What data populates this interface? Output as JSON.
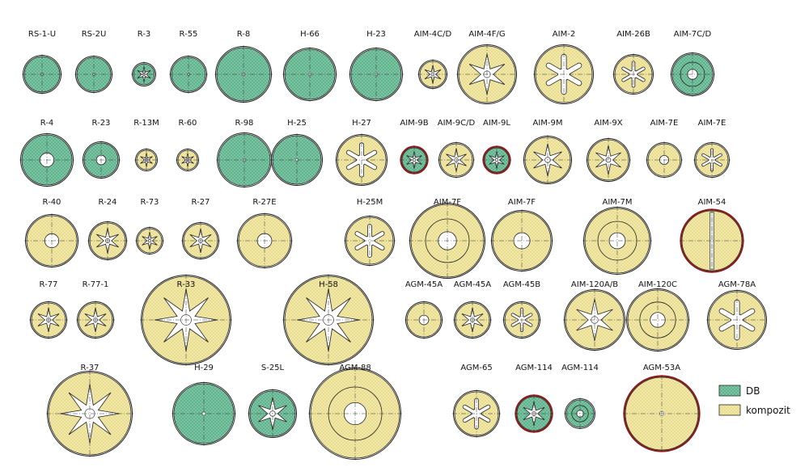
{
  "colors": {
    "db": "#79c7a3",
    "kompozit": "#f3e9a6",
    "outline": "#222222",
    "outer_red": "#8b1a1a"
  },
  "legend": [
    {
      "key": "db",
      "label": "DB"
    },
    {
      "key": "kompozit",
      "label": "kompozit"
    }
  ],
  "rows": [
    [
      {
        "label": "RS-1-U",
        "mat": "db",
        "pattern": "cross"
      },
      {
        "label": "RS-2U",
        "mat": "db",
        "pattern": "cross"
      },
      {
        "label": "R-3",
        "mat": "db",
        "pattern": "star"
      },
      {
        "label": "R-55",
        "mat": "db",
        "pattern": "cross"
      },
      {
        "label": "R-8",
        "mat": "db",
        "pattern": "cross"
      },
      {
        "label": "H-66",
        "mat": "db",
        "pattern": "cross"
      },
      {
        "label": "H-23",
        "mat": "db",
        "pattern": "cross"
      },
      {
        "label": "AIM-4C/D",
        "mat": "kompozit",
        "pattern": "star"
      },
      {
        "label": "AIM-4F/G",
        "mat": "kompozit",
        "pattern": "star"
      },
      {
        "label": "AIM-2",
        "mat": "kompozit",
        "pattern": "slots"
      },
      {
        "label": "AIM-26B",
        "mat": "kompozit",
        "pattern": "slots"
      },
      {
        "label": "AIM-7C/D",
        "mat": "db",
        "pattern": "rings"
      }
    ],
    [
      {
        "label": "R-4",
        "mat": "db",
        "pattern": "hole"
      },
      {
        "label": "R-23",
        "mat": "db",
        "pattern": "hole"
      },
      {
        "label": "R-13M",
        "mat": "kompozit",
        "pattern": "star"
      },
      {
        "label": "R-60",
        "mat": "kompozit",
        "pattern": "star"
      },
      {
        "label": "R-98",
        "mat": "db",
        "pattern": "cross"
      },
      {
        "label": "H-25",
        "mat": "db",
        "pattern": "cross"
      },
      {
        "label": "H-27",
        "mat": "kompozit",
        "pattern": "slots"
      },
      {
        "label": "AIM-9B",
        "mat": "db",
        "pattern": "star"
      },
      {
        "label": "AIM-9C/D",
        "mat": "kompozit",
        "pattern": "star"
      },
      {
        "label": "AIM-9L",
        "mat": "db",
        "pattern": "star"
      },
      {
        "label": "AIM-9M",
        "mat": "kompozit",
        "pattern": "star"
      },
      {
        "label": "AIM-9X",
        "mat": "kompozit",
        "pattern": "star"
      },
      {
        "label": "AIM-7E",
        "mat": "kompozit",
        "pattern": "hole"
      },
      {
        "label": "AIM-7E",
        "mat": "kompozit",
        "pattern": "slots"
      }
    ],
    [
      {
        "label": "R-40",
        "mat": "kompozit",
        "pattern": "hole"
      },
      {
        "label": "R-24",
        "mat": "kompozit",
        "pattern": "star"
      },
      {
        "label": "R-73",
        "mat": "kompozit",
        "pattern": "star"
      },
      {
        "label": "R-27",
        "mat": "kompozit",
        "pattern": "star"
      },
      {
        "label": "R-27E",
        "mat": "kompozit",
        "pattern": "hole"
      },
      {
        "label": "H-25M",
        "mat": "kompozit",
        "pattern": "slots"
      },
      {
        "label": "AIM-7F",
        "mat": "kompozit",
        "pattern": "rings"
      },
      {
        "label": "AIM-7F",
        "mat": "kompozit",
        "pattern": "hole"
      },
      {
        "label": "AIM-7M",
        "mat": "kompozit",
        "pattern": "rings"
      },
      {
        "label": "AIM-54",
        "mat": "kompozit",
        "pattern": "bar"
      }
    ],
    [
      {
        "label": "R-77",
        "mat": "kompozit",
        "pattern": "star"
      },
      {
        "label": "R-77-1",
        "mat": "kompozit",
        "pattern": "star"
      },
      {
        "label": "R-33",
        "mat": "kompozit",
        "pattern": "star"
      },
      {
        "label": "H-58",
        "mat": "kompozit",
        "pattern": "star"
      },
      {
        "label": "AGM-45A",
        "mat": "kompozit",
        "pattern": "hole"
      },
      {
        "label": "AGM-45A",
        "mat": "kompozit",
        "pattern": "star"
      },
      {
        "label": "AGM-45B",
        "mat": "kompozit",
        "pattern": "slots"
      },
      {
        "label": "AIM-120A/B",
        "mat": "kompozit",
        "pattern": "star"
      },
      {
        "label": "AIM-120C",
        "mat": "kompozit",
        "pattern": "rings"
      },
      {
        "label": "AGM-78A",
        "mat": "kompozit",
        "pattern": "slots"
      }
    ],
    [
      {
        "label": "R-37",
        "mat": "kompozit",
        "pattern": "star"
      },
      {
        "label": "H-29",
        "mat": "db",
        "pattern": "cross"
      },
      {
        "label": "S-25L",
        "mat": "db",
        "pattern": "star"
      },
      {
        "label": "AGM-88",
        "mat": "kompozit",
        "pattern": "rings"
      },
      {
        "label": "AGM-65",
        "mat": "kompozit",
        "pattern": "slots"
      },
      {
        "label": "AGM-114",
        "mat": "db",
        "pattern": "star"
      },
      {
        "label": "AGM-114",
        "mat": "db",
        "pattern": "rings"
      },
      {
        "label": "AGM-53A",
        "mat": "kompozit",
        "pattern": "cross"
      }
    ]
  ]
}
